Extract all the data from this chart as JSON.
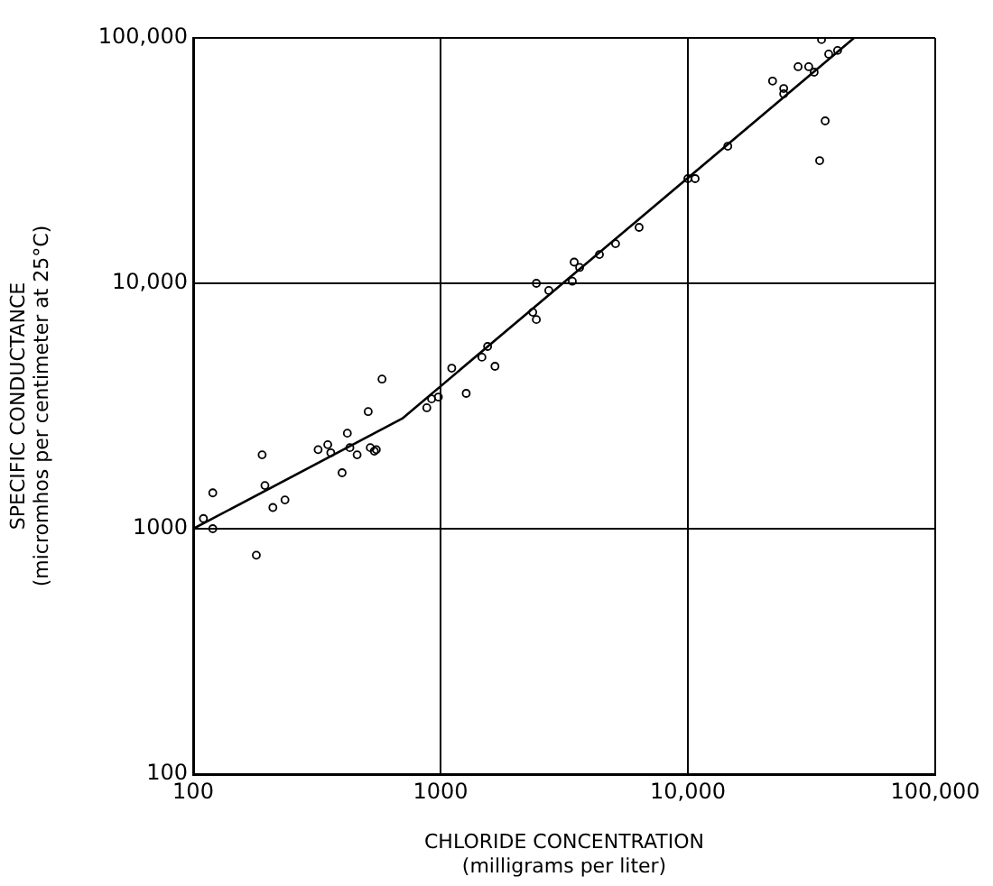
{
  "chart_data": {
    "type": "scatter",
    "xlabel": "CHLORIDE CONCENTRATION\n(milligrams per liter)",
    "ylabel": "SPECIFIC CONDUCTANCE\n(micromhos per centimeter at 25°C)",
    "log": "xy",
    "grid": true,
    "legend": false,
    "marker": "circle",
    "xlim": [
      100,
      100000
    ],
    "ylim": [
      100,
      100000
    ],
    "xticks": [
      100,
      1000,
      {
        "value": 10000,
        "label": "10,000"
      },
      {
        "value": 100000,
        "label": "100,000"
      }
    ],
    "yticks": [
      100,
      1000,
      {
        "value": 10000,
        "label": "10,000"
      },
      {
        "value": 100000,
        "label": "100,000"
      }
    ],
    "series": [
      {
        "type": "scatter",
        "color": "#000000",
        "x": [
          110,
          120,
          120,
          180,
          190,
          195,
          210,
          235,
          320,
          350,
          360,
          400,
          420,
          430,
          460,
          510,
          520,
          540,
          550,
          580,
          880,
          920,
          980,
          1110,
          1270,
          1470,
          1550,
          1660,
          2360,
          2440,
          2440,
          2740,
          3410,
          3470,
          3650,
          4390,
          5100,
          6350,
          10000,
          10700,
          14500,
          22000,
          24400,
          24400,
          27900,
          30800,
          32400,
          34700,
          37100,
          40300,
          35900,
          34100
        ],
        "values": [
          1100,
          1400,
          1000,
          780,
          2000,
          1500,
          1220,
          1310,
          2100,
          2200,
          2040,
          1690,
          2450,
          2140,
          2000,
          3000,
          2140,
          2070,
          2100,
          4070,
          3110,
          3380,
          3440,
          4510,
          3560,
          5000,
          5530,
          4590,
          7620,
          7120,
          10000,
          9350,
          10200,
          12200,
          11600,
          13100,
          14500,
          16900,
          26700,
          26700,
          36200,
          66700,
          62200,
          59200,
          76300,
          76300,
          72500,
          98400,
          85900,
          88900,
          45900,
          31600
        ]
      },
      {
        "type": "line",
        "color": "#000000",
        "marker": "none",
        "x": [
          100,
          700,
          47000
        ],
        "values": [
          1000,
          2810,
          100000
        ]
      }
    ]
  }
}
